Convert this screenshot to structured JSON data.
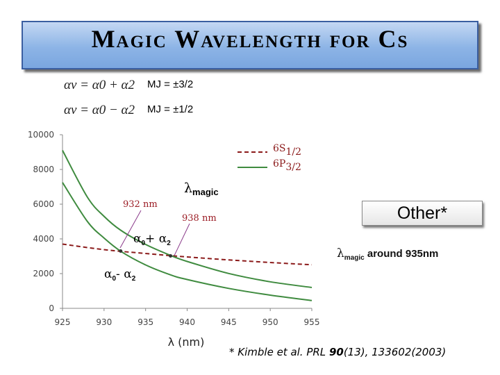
{
  "title": "Magic Wavelength for Cs",
  "formulas": {
    "f1": {
      "text": "αν = α0 + α2",
      "label": "MJ = ±3/2"
    },
    "f2": {
      "text": "αν = α0 − α2",
      "label": "MJ = ±1/2"
    }
  },
  "other_label": "Other*",
  "note": {
    "prefix": "λ",
    "sub": "magic",
    "text": " around 935nm"
  },
  "citation": {
    "pre": "* Kimble et al. PRL ",
    "vol": "90",
    "post": "(13), 133602(2003)"
  },
  "chart_data": {
    "type": "line",
    "x_title": "λ (nm)",
    "xlim": [
      925,
      955
    ],
    "ylim": [
      0,
      10000
    ],
    "xticks": [
      "925",
      "930",
      "935",
      "940",
      "945",
      "950",
      "955"
    ],
    "yticks": [
      "0",
      "2000",
      "4000",
      "6000",
      "8000",
      "10000"
    ],
    "grid": false,
    "legend_position": "top-right",
    "series": [
      {
        "name": "6S1/2",
        "color": "#8b1a1a",
        "dash": "6,4",
        "x": [
          925,
          930,
          935,
          940,
          945,
          950,
          955
        ],
        "y": [
          3700,
          3380,
          3160,
          2960,
          2790,
          2640,
          2510
        ]
      },
      {
        "name": "6P3/2 (α0 + α2)",
        "color": "#3f8b3f",
        "dash": "",
        "x": [
          925,
          928,
          930,
          932,
          935,
          938,
          940,
          945,
          950,
          955
        ],
        "y": [
          9100,
          6400,
          5300,
          4500,
          3680,
          3050,
          2700,
          2010,
          1530,
          1200
        ]
      },
      {
        "name": "6P3/2 (α0 − α2)",
        "color": "#3f8b3f",
        "dash": "",
        "x": [
          925,
          928,
          930,
          932,
          935,
          938,
          940,
          945,
          950,
          955
        ],
        "y": [
          7250,
          5000,
          4050,
          3290,
          2500,
          1930,
          1660,
          1150,
          760,
          450
        ]
      }
    ],
    "legend": [
      {
        "label": "6S",
        "sub": "1/2",
        "color": "#8b1a1a",
        "dash": "6,4"
      },
      {
        "label": "6P",
        "sub": "3/2",
        "color": "#3f8b3f",
        "dash": ""
      }
    ],
    "annotations": {
      "lambda_magic": {
        "main": "λ",
        "sub": "magic"
      },
      "nm932": "932 nm",
      "nm938": "938 nm",
      "plus": {
        "a": "α",
        "a_sub": "0",
        "op": "+ ",
        "b": "α",
        "b_sub": "2"
      },
      "minus": {
        "a": "α",
        "a_sub": "0",
        "op": "- ",
        "b": "α",
        "b_sub": "2"
      }
    },
    "crossings": [
      {
        "x": 932.0,
        "y": 3300
      },
      {
        "x": 938.0,
        "y": 3020
      }
    ]
  }
}
